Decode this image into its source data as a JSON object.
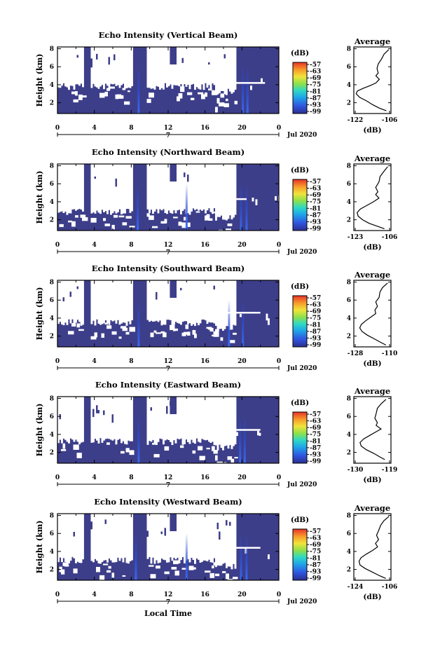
{
  "figure": {
    "xlabel_common": "Local Time",
    "date_label": "Jul 2020"
  },
  "chart_data": [
    {
      "type": "heatmap",
      "title": "Echo Intensity (Vertical Beam)",
      "ylabel": "Height (km)",
      "y_range_km": [
        0.8,
        8.2
      ],
      "y_ticks": [
        "2",
        "4",
        "6",
        "8"
      ],
      "x_range_hours": [
        0,
        24
      ],
      "x_ticks": [
        "0",
        "4",
        "8",
        "12",
        "16",
        "20",
        "0"
      ],
      "day_label": "7",
      "colorbar": {
        "unit": "(dB)",
        "ticks": [
          "-57",
          "-63",
          "-69",
          "-75",
          "-81",
          "-87",
          "-93",
          "-99"
        ]
      },
      "colors": {
        "background": "#3d3e8a",
        "no_data": "#ffffff",
        "enhanced": "#2a4ed8"
      },
      "lower_data_layer_top_km": 3.8,
      "shear_line": {
        "height_km": 4.2,
        "start_hour": 17,
        "end_hour": 22.5
      },
      "enhanced_streaks_hours": [
        8.8,
        20.1,
        20.6
      ],
      "average": {
        "title": "Average",
        "xlabel": "(dB)",
        "x_ticks": [
          "-122",
          "-106"
        ],
        "xlim": [
          -122,
          -106
        ],
        "ylim": [
          0.8,
          8.2
        ],
        "profile": [
          [
            -107,
            7.9
          ],
          [
            -109,
            7.4
          ],
          [
            -110,
            6.9
          ],
          [
            -111.5,
            6.3
          ],
          [
            -112,
            5.8
          ],
          [
            -111.5,
            5.3
          ],
          [
            -112.5,
            5.0
          ],
          [
            -111,
            4.6
          ],
          [
            -112.5,
            4.2
          ],
          [
            -115,
            3.9
          ],
          [
            -118,
            3.6
          ],
          [
            -120.5,
            3.3
          ],
          [
            -121,
            3.0
          ],
          [
            -119.5,
            2.6
          ],
          [
            -116.5,
            2.2
          ],
          [
            -114,
            1.8
          ],
          [
            -111,
            1.4
          ],
          [
            -108,
            1.1
          ]
        ]
      }
    },
    {
      "type": "heatmap",
      "title": "Echo Intensity (Northward Beam)",
      "ylabel": "Height (km)",
      "y_range_km": [
        0.8,
        8.2
      ],
      "y_ticks": [
        "2",
        "4",
        "6",
        "8"
      ],
      "x_range_hours": [
        0,
        24
      ],
      "x_ticks": [
        "0",
        "4",
        "8",
        "12",
        "16",
        "20",
        "0"
      ],
      "day_label": "7",
      "colorbar": {
        "unit": "(dB)",
        "ticks": [
          "-57",
          "-63",
          "-69",
          "-75",
          "-81",
          "-87",
          "-93",
          "-99"
        ]
      },
      "colors": {
        "background": "#3d3e8a",
        "no_data": "#ffffff",
        "enhanced": "#2a4ed8"
      },
      "lower_data_layer_top_km": 2.9,
      "shear_line": {
        "height_km": 4.3,
        "start_hour": 17,
        "end_hour": 20.5
      },
      "enhanced_streaks_hours": [
        8.7,
        14.0,
        19.9,
        20.5
      ],
      "average": {
        "title": "Average",
        "xlabel": "(dB)",
        "x_ticks": [
          "-123",
          "-106"
        ],
        "xlim": [
          -123,
          -106
        ],
        "ylim": [
          0.8,
          8.2
        ],
        "profile": [
          [
            -107.5,
            7.9
          ],
          [
            -109.5,
            7.3
          ],
          [
            -111,
            6.8
          ],
          [
            -111.5,
            6.2
          ],
          [
            -113,
            5.6
          ],
          [
            -112,
            5.1
          ],
          [
            -113,
            4.8
          ],
          [
            -111.5,
            4.4
          ],
          [
            -114,
            4.0
          ],
          [
            -117,
            3.6
          ],
          [
            -120,
            3.2
          ],
          [
            -121.5,
            2.8
          ],
          [
            -121,
            2.4
          ],
          [
            -119,
            2.0
          ],
          [
            -116,
            1.6
          ],
          [
            -112.5,
            1.3
          ],
          [
            -109,
            1.0
          ]
        ]
      }
    },
    {
      "type": "heatmap",
      "title": "Echo Intensity (Southward Beam)",
      "ylabel": "Height (km)",
      "y_range_km": [
        0.8,
        8.2
      ],
      "y_ticks": [
        "2",
        "4",
        "6",
        "8"
      ],
      "x_range_hours": [
        0,
        24
      ],
      "x_ticks": [
        "0",
        "4",
        "8",
        "12",
        "16",
        "20",
        "0"
      ],
      "day_label": "7",
      "colorbar": {
        "unit": "(dB)",
        "ticks": [
          "-57",
          "-63",
          "-69",
          "-75",
          "-81",
          "-87",
          "-93",
          "-99"
        ]
      },
      "colors": {
        "background": "#3d3e8a",
        "no_data": "#ffffff",
        "enhanced": "#2a4ed8"
      },
      "lower_data_layer_top_km": 3.5,
      "shear_line": {
        "height_km": 4.6,
        "start_hour": 18,
        "end_hour": 22
      },
      "enhanced_streaks_hours": [
        8.8,
        18.6,
        20.1
      ],
      "average": {
        "title": "Average",
        "xlabel": "(dB)",
        "x_ticks": [
          "-128",
          "-110"
        ],
        "xlim": [
          -128,
          -106
        ],
        "ylim": [
          0.8,
          8.2
        ],
        "profile": [
          [
            -108,
            7.9
          ],
          [
            -111,
            7.4
          ],
          [
            -112.5,
            6.9
          ],
          [
            -113,
            6.3
          ],
          [
            -115,
            5.8
          ],
          [
            -114,
            5.3
          ],
          [
            -115.5,
            4.9
          ],
          [
            -115,
            4.5
          ],
          [
            -118,
            4.1
          ],
          [
            -121,
            3.7
          ],
          [
            -123.5,
            3.3
          ],
          [
            -124.5,
            2.9
          ],
          [
            -123,
            2.5
          ],
          [
            -120,
            2.1
          ],
          [
            -116,
            1.7
          ],
          [
            -112,
            1.3
          ],
          [
            -109,
            1.0
          ]
        ]
      }
    },
    {
      "type": "heatmap",
      "title": "Echo Intensity (Eastward Beam)",
      "ylabel": "Height (km)",
      "y_range_km": [
        0.8,
        8.2
      ],
      "y_ticks": [
        "2",
        "4",
        "6",
        "8"
      ],
      "x_range_hours": [
        0,
        24
      ],
      "x_ticks": [
        "0",
        "4",
        "8",
        "12",
        "16",
        "20",
        "0"
      ],
      "day_label": "7",
      "colorbar": {
        "unit": "(dB)",
        "ticks": [
          "-57",
          "-63",
          "-69",
          "-75",
          "-81",
          "-87",
          "-93",
          "-99"
        ]
      },
      "colors": {
        "background": "#3d3e8a",
        "no_data": "#ffffff",
        "enhanced": "#2a4ed8"
      },
      "lower_data_layer_top_km": 3.2,
      "shear_line": {
        "height_km": 4.5,
        "start_hour": 18,
        "end_hour": 22
      },
      "enhanced_streaks_hours": [
        8.8,
        19.8,
        20.3
      ],
      "average": {
        "title": "Average",
        "xlabel": "(dB)",
        "x_ticks": [
          "-130",
          "-119"
        ],
        "xlim": [
          -130,
          -115
        ],
        "ylim": [
          0.8,
          8.2
        ],
        "profile": [
          [
            -117,
            7.9
          ],
          [
            -119,
            7.4
          ],
          [
            -120.5,
            6.9
          ],
          [
            -121,
            6.3
          ],
          [
            -121.5,
            5.8
          ],
          [
            -120.5,
            5.3
          ],
          [
            -121,
            5.0
          ],
          [
            -119,
            4.6
          ],
          [
            -121,
            4.3
          ],
          [
            -123.5,
            3.9
          ],
          [
            -126,
            3.5
          ],
          [
            -127.5,
            3.1
          ],
          [
            -127,
            2.7
          ],
          [
            -125,
            2.3
          ],
          [
            -122,
            1.9
          ],
          [
            -119.5,
            1.5
          ],
          [
            -117.5,
            1.2
          ]
        ]
      }
    },
    {
      "type": "heatmap",
      "title": "Echo Intensity (Westward Beam)",
      "ylabel": "Height (km)",
      "y_range_km": [
        0.8,
        8.2
      ],
      "y_ticks": [
        "2",
        "4",
        "6",
        "8"
      ],
      "x_range_hours": [
        0,
        24
      ],
      "x_ticks": [
        "0",
        "4",
        "8",
        "12",
        "16",
        "20",
        "0"
      ],
      "day_label": "7",
      "colorbar": {
        "unit": "(dB)",
        "ticks": [
          "-57",
          "-63",
          "-69",
          "-75",
          "-81",
          "-87",
          "-93",
          "-99"
        ]
      },
      "colors": {
        "background": "#3d3e8a",
        "no_data": "#ffffff",
        "enhanced": "#2a4ed8"
      },
      "lower_data_layer_top_km": 3.0,
      "shear_line": {
        "height_km": 4.4,
        "start_hour": 18,
        "end_hour": 22
      },
      "enhanced_streaks_hours": [
        8.5,
        14.0,
        19.9,
        20.5
      ],
      "average": {
        "title": "Average",
        "xlabel": "(dB)",
        "x_ticks": [
          "-124",
          "-106"
        ],
        "xlim": [
          -124,
          -106
        ],
        "ylim": [
          0.8,
          8.2
        ],
        "profile": [
          [
            -107,
            7.9
          ],
          [
            -109.5,
            7.4
          ],
          [
            -111,
            6.9
          ],
          [
            -112,
            6.3
          ],
          [
            -113,
            5.8
          ],
          [
            -112,
            5.3
          ],
          [
            -113.5,
            4.9
          ],
          [
            -112.5,
            4.5
          ],
          [
            -115,
            4.1
          ],
          [
            -118,
            3.7
          ],
          [
            -120.5,
            3.3
          ],
          [
            -121.5,
            2.9
          ],
          [
            -121,
            2.5
          ],
          [
            -118.5,
            2.1
          ],
          [
            -115,
            1.7
          ],
          [
            -111.5,
            1.3
          ],
          [
            -108.5,
            1.0
          ]
        ]
      }
    }
  ]
}
